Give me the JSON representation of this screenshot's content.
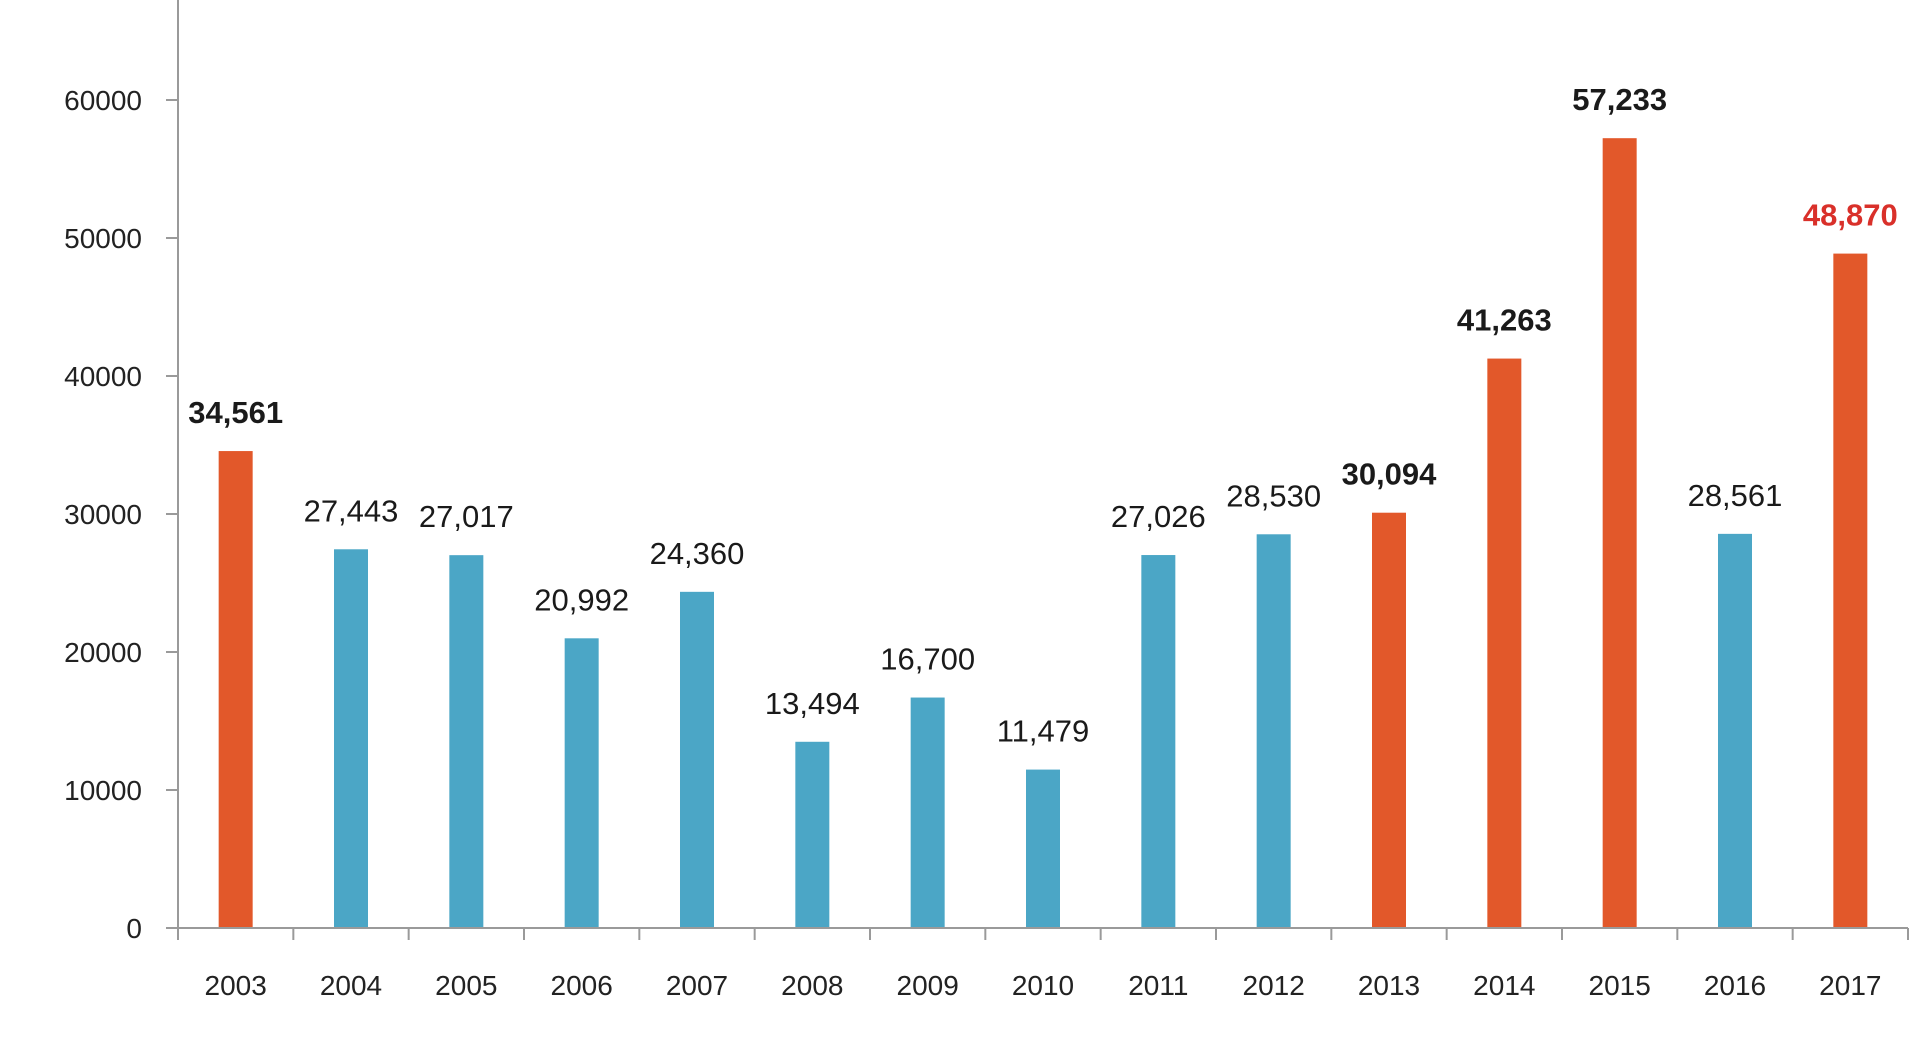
{
  "chart_data": {
    "type": "bar",
    "categories": [
      "2003",
      "2004",
      "2005",
      "2006",
      "2007",
      "2008",
      "2009",
      "2010",
      "2011",
      "2012",
      "2013",
      "2014",
      "2015",
      "2016",
      "2017"
    ],
    "values": [
      34561,
      27443,
      27017,
      20992,
      24360,
      13494,
      16700,
      11479,
      27026,
      28530,
      30094,
      41263,
      57233,
      28561,
      48870
    ],
    "value_labels": [
      "34,561",
      "27,443",
      "27,017",
      "20,992",
      "24,360",
      "13,494",
      "16,700",
      "11,479",
      "27,026",
      "28,530",
      "30,094",
      "41,263",
      "57,233",
      "28,561",
      "48,870"
    ],
    "bar_colors": [
      "#e2582a",
      "#4ba6c6",
      "#4ba6c6",
      "#4ba6c6",
      "#4ba6c6",
      "#4ba6c6",
      "#4ba6c6",
      "#4ba6c6",
      "#4ba6c6",
      "#4ba6c6",
      "#e2582a",
      "#e2582a",
      "#e2582a",
      "#4ba6c6",
      "#e2582a"
    ],
    "label_colors": [
      "#1a1a1a",
      "#1a1a1a",
      "#1a1a1a",
      "#1a1a1a",
      "#1a1a1a",
      "#1a1a1a",
      "#1a1a1a",
      "#1a1a1a",
      "#1a1a1a",
      "#1a1a1a",
      "#1a1a1a",
      "#1a1a1a",
      "#1a1a1a",
      "#1a1a1a",
      "#d9302a"
    ],
    "label_bold": [
      true,
      false,
      false,
      false,
      false,
      false,
      false,
      false,
      false,
      false,
      true,
      true,
      true,
      false,
      true
    ],
    "yticks": [
      0,
      10000,
      20000,
      30000,
      40000,
      50000,
      60000
    ],
    "ytick_labels": [
      "0",
      "10000",
      "20000",
      "30000",
      "40000",
      "50000",
      "60000"
    ],
    "ylim": [
      0,
      67000
    ],
    "title": "",
    "xlabel": "",
    "ylabel": "",
    "grid": false,
    "legend": "none",
    "colors": {
      "highlight": "#e2582a",
      "normal": "#4ba6c6",
      "axis": "#9a9a9a",
      "emphasis_label": "#d9302a"
    }
  }
}
